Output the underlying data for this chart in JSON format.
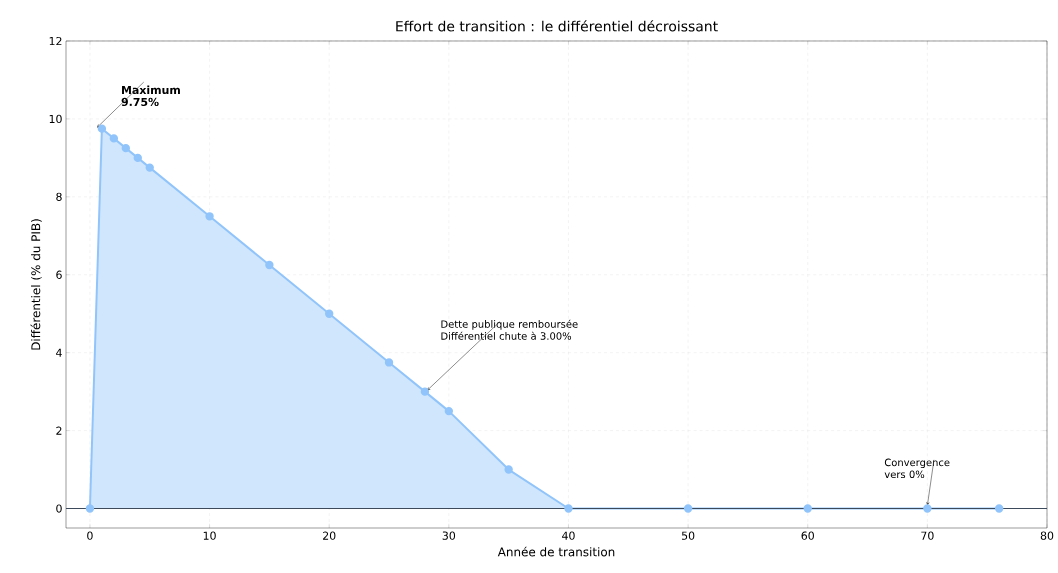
{
  "chart_data": {
    "type": "area",
    "title": "Effort de transition : le différentiel décroissant",
    "xlabel": "Année de transition",
    "ylabel": "Différentiel (% du PIB)",
    "x": [
      0,
      1,
      2,
      3,
      4,
      5,
      10,
      15,
      20,
      25,
      28,
      30,
      35,
      40,
      50,
      60,
      70,
      76
    ],
    "series": [
      {
        "color": "#90c4fa",
        "values": [
          0,
          9.75,
          9.5,
          9.25,
          9.0,
          8.75,
          7.5,
          6.25,
          5.0,
          3.75,
          3.0,
          2.5,
          1.0,
          0,
          0,
          0,
          0,
          0
        ]
      }
    ],
    "marker": "circle",
    "grid": true,
    "xlim": [
      -2,
      80
    ],
    "ylim": [
      -0.5,
      12
    ],
    "xticks": [
      0,
      10,
      20,
      30,
      40,
      50,
      60,
      70,
      80
    ],
    "yticks": [
      0,
      2,
      4,
      6,
      8,
      10,
      12
    ],
    "ref_lines": [
      {
        "axis": "y",
        "value": 0,
        "color": "#3d4a5c"
      }
    ],
    "annotations": [
      {
        "text": "**Maximum 9.75%**",
        "x": 1,
        "y": 9.75
      },
      {
        "text": "Dette publique remboursée Différentiel chute à 3.00%",
        "x": 28,
        "y": 3.0
      },
      {
        "text": "Convergence vers 0%",
        "x": 70,
        "y": 0
      }
    ]
  }
}
